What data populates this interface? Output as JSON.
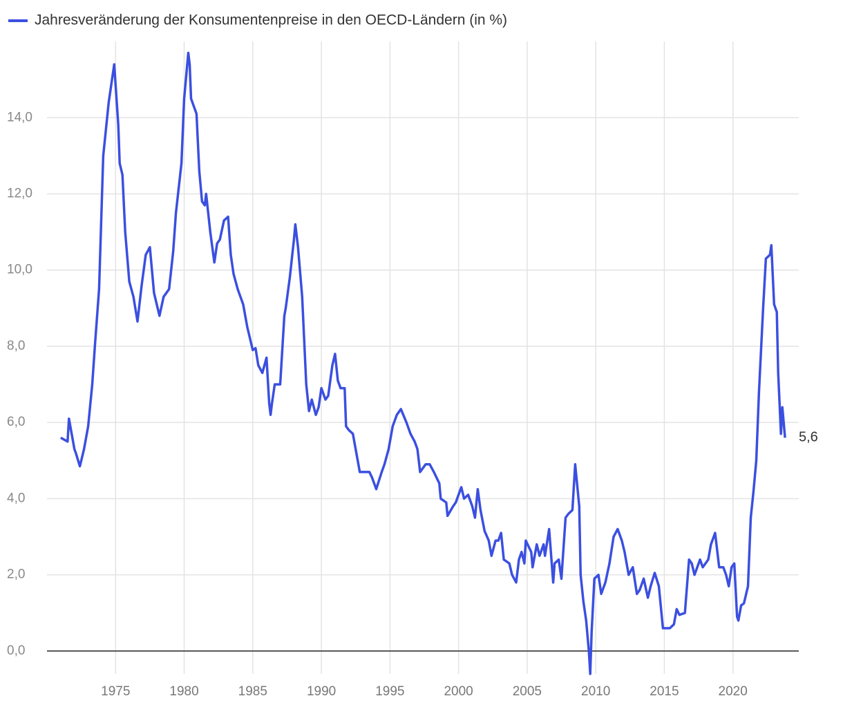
{
  "chart_data": {
    "type": "line",
    "series": [
      {
        "name": "Jahresveränderung der Konsumentenpreise in den OECD-Ländern (in %)",
        "color": "#3b4fe0",
        "x": [
          1971.0,
          1971.5,
          1971.6,
          1972.0,
          1972.1,
          1972.4,
          1972.7,
          1973.0,
          1973.3,
          1973.5,
          1973.8,
          1974.1,
          1974.5,
          1974.9,
          1975.2,
          1975.3,
          1975.5,
          1975.7,
          1976.0,
          1976.3,
          1976.6,
          1976.9,
          1977.2,
          1977.5,
          1977.8,
          1978.2,
          1978.5,
          1978.9,
          1979.2,
          1979.4,
          1979.8,
          1980.0,
          1980.3,
          1980.4,
          1980.5,
          1980.9,
          1981.1,
          1981.3,
          1981.5,
          1981.6,
          1981.9,
          1982.2,
          1982.4,
          1982.6,
          1982.9,
          1983.2,
          1983.4,
          1983.6,
          1983.9,
          1984.3,
          1984.6,
          1985.0,
          1985.2,
          1985.4,
          1985.7,
          1986.0,
          1986.2,
          1986.3,
          1986.4,
          1986.6,
          1987.0,
          1987.3,
          1987.4,
          1987.7,
          1988.0,
          1988.1,
          1988.3,
          1988.6,
          1988.9,
          1989.1,
          1989.3,
          1989.6,
          1989.8,
          1990.0,
          1990.3,
          1990.5,
          1990.8,
          1991.0,
          1991.2,
          1991.4,
          1991.7,
          1991.8,
          1992.0,
          1992.3,
          1992.6,
          1992.8,
          1993.1,
          1993.5,
          1993.7,
          1994.0,
          1994.4,
          1994.6,
          1994.9,
          1995.2,
          1995.5,
          1995.8,
          1996.2,
          1996.5,
          1996.8,
          1997.0,
          1997.2,
          1997.6,
          1997.9,
          1998.2,
          1998.6,
          1998.7,
          1999.1,
          1999.2,
          1999.6,
          1999.8,
          2000.2,
          2000.4,
          2000.7,
          2001.0,
          2001.2,
          2001.4,
          2001.6,
          2001.9,
          2002.2,
          2002.4,
          2002.7,
          2002.9,
          2003.1,
          2003.3,
          2003.7,
          2003.9,
          2004.2,
          2004.4,
          2004.6,
          2004.8,
          2004.9,
          2005.3,
          2005.4,
          2005.7,
          2005.9,
          2006.2,
          2006.3,
          2006.6,
          2006.9,
          2007.0,
          2007.3,
          2007.5,
          2007.8,
          2008.0,
          2008.3,
          2008.5,
          2008.8,
          2008.9,
          2009.1,
          2009.3,
          2009.5,
          2009.6,
          2009.7,
          2009.9,
          2010.2,
          2010.4,
          2010.7,
          2011.0,
          2011.3,
          2011.6,
          2011.9,
          2012.1,
          2012.4,
          2012.7,
          2013.0,
          2013.2,
          2013.5,
          2013.8,
          2014.0,
          2014.3,
          2014.6,
          2014.9,
          2015.2,
          2015.4,
          2015.7,
          2015.9,
          2016.1,
          2016.5,
          2016.8,
          2017.0,
          2017.2,
          2017.6,
          2017.8,
          2018.2,
          2018.4,
          2018.7,
          2019.0,
          2019.3,
          2019.5,
          2019.7,
          2019.9,
          2020.1,
          2020.3,
          2020.4,
          2020.6,
          2020.8,
          2021.1,
          2021.3,
          2021.5,
          2021.7,
          2021.9,
          2022.2,
          2022.4,
          2022.7,
          2022.8,
          2023.0,
          2023.2,
          2023.3,
          2023.5,
          2023.6,
          2023.8
        ],
        "values": [
          5.6,
          5.5,
          6.1,
          5.3,
          5.2,
          4.85,
          5.3,
          5.9,
          7.0,
          8.05,
          9.5,
          13.0,
          14.4,
          15.4,
          13.8,
          12.8,
          12.5,
          11.0,
          9.7,
          9.3,
          8.65,
          9.6,
          10.4,
          10.6,
          9.4,
          8.8,
          9.3,
          9.5,
          10.5,
          11.5,
          12.8,
          14.5,
          15.7,
          15.4,
          14.5,
          14.1,
          12.6,
          11.8,
          11.7,
          12.0,
          11.0,
          10.2,
          10.7,
          10.8,
          11.3,
          11.4,
          10.4,
          9.9,
          9.5,
          9.1,
          8.5,
          7.9,
          7.95,
          7.5,
          7.3,
          7.7,
          6.5,
          6.2,
          6.5,
          7.0,
          7.0,
          8.8,
          9.0,
          9.8,
          10.8,
          11.2,
          10.6,
          9.3,
          7.0,
          6.3,
          6.6,
          6.2,
          6.4,
          6.9,
          6.6,
          6.7,
          7.5,
          7.8,
          7.1,
          6.9,
          6.9,
          5.9,
          5.8,
          5.7,
          5.1,
          4.7,
          4.7,
          4.7,
          4.55,
          4.25,
          4.7,
          4.9,
          5.3,
          5.9,
          6.2,
          6.35,
          6.0,
          5.7,
          5.5,
          5.3,
          4.7,
          4.9,
          4.9,
          4.7,
          4.4,
          4.0,
          3.9,
          3.55,
          3.8,
          3.9,
          4.3,
          4.0,
          4.1,
          3.8,
          3.5,
          4.25,
          3.7,
          3.15,
          2.9,
          2.5,
          2.9,
          2.9,
          3.1,
          2.4,
          2.3,
          2.0,
          1.8,
          2.4,
          2.6,
          2.3,
          2.9,
          2.6,
          2.2,
          2.8,
          2.5,
          2.8,
          2.5,
          3.2,
          1.8,
          2.3,
          2.4,
          1.9,
          3.5,
          3.6,
          3.7,
          4.9,
          3.8,
          2.0,
          1.3,
          0.8,
          0.0,
          -0.6,
          0.5,
          1.9,
          2.0,
          1.5,
          1.8,
          2.3,
          3.0,
          3.2,
          2.9,
          2.6,
          2.0,
          2.2,
          1.5,
          1.6,
          1.9,
          1.4,
          1.7,
          2.05,
          1.7,
          0.6,
          0.6,
          0.6,
          0.7,
          1.1,
          0.95,
          1.0,
          2.4,
          2.3,
          2.0,
          2.4,
          2.2,
          2.4,
          2.8,
          3.1,
          2.2,
          2.2,
          2.0,
          1.7,
          2.2,
          2.3,
          0.9,
          0.8,
          1.2,
          1.25,
          1.7,
          3.5,
          4.2,
          5.0,
          6.8,
          9.0,
          10.3,
          10.4,
          10.65,
          9.1,
          8.9,
          7.3,
          5.7,
          6.4,
          5.6
        ]
      }
    ],
    "annotation": {
      "value": 5.6,
      "label": "5,6"
    },
    "xlim": [
      1970,
      2024.8
    ],
    "xticks": [
      1975,
      1980,
      1985,
      1990,
      1995,
      2000,
      2005,
      2010,
      2015,
      2020
    ],
    "ylim": [
      -0.6,
      16
    ],
    "yticks": [
      {
        "value": 0,
        "label": "0,0"
      },
      {
        "value": 2,
        "label": "2,0"
      },
      {
        "value": 4,
        "label": "4,0"
      },
      {
        "value": 6,
        "label": "6,0"
      },
      {
        "value": 8,
        "label": "8,0"
      },
      {
        "value": 10,
        "label": "10,0"
      },
      {
        "value": 12,
        "label": "12,0"
      },
      {
        "value": 14,
        "label": "14,0"
      }
    ],
    "grid": true,
    "legend": "top-left"
  }
}
